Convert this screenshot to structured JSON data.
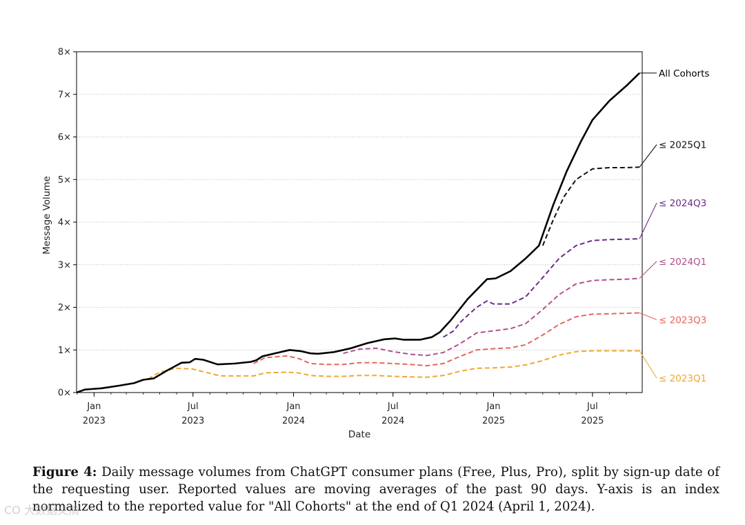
{
  "chart_data": {
    "type": "line",
    "xlabel": "Date",
    "ylabel": "Message Volume",
    "ylim": [
      0,
      8
    ],
    "yticks": [
      {
        "value": 0,
        "label": "0×"
      },
      {
        "value": 1,
        "label": "1×"
      },
      {
        "value": 2,
        "label": "2×"
      },
      {
        "value": 3,
        "label": "3×"
      },
      {
        "value": 4,
        "label": "4×"
      },
      {
        "value": 5,
        "label": "5×"
      },
      {
        "value": 6,
        "label": "6×"
      },
      {
        "value": 7,
        "label": "7×"
      },
      {
        "value": 8,
        "label": "8×"
      }
    ],
    "xlim": [
      "2022-11-30",
      "2025-09-30"
    ],
    "xticks": [
      {
        "date": "2023-01-01",
        "month": "Jan",
        "year": "2023"
      },
      {
        "date": "2023-07-01",
        "month": "Jul",
        "year": "2023"
      },
      {
        "date": "2024-01-01",
        "month": "Jan",
        "year": "2024"
      },
      {
        "date": "2024-07-01",
        "month": "Jul",
        "year": "2024"
      },
      {
        "date": "2025-01-01",
        "month": "Jan",
        "year": "2025"
      },
      {
        "date": "2025-07-01",
        "month": "Jul",
        "year": "2025"
      }
    ],
    "grid": "horizontal",
    "series": [
      {
        "name": "≤ 2023Q1",
        "color": "#f0a72f",
        "style": "dashed",
        "points": [
          [
            "2023-04-10",
            0.32
          ],
          [
            "2023-05-01",
            0.48
          ],
          [
            "2023-06-01",
            0.57
          ],
          [
            "2023-07-01",
            0.55
          ],
          [
            "2023-08-01",
            0.45
          ],
          [
            "2023-08-20",
            0.39
          ],
          [
            "2023-09-20",
            0.39
          ],
          [
            "2023-10-20",
            0.39
          ],
          [
            "2023-11-10",
            0.46
          ],
          [
            "2023-12-20",
            0.48
          ],
          [
            "2024-01-10",
            0.46
          ],
          [
            "2024-02-01",
            0.4
          ],
          [
            "2024-03-01",
            0.38
          ],
          [
            "2024-04-01",
            0.38
          ],
          [
            "2024-05-01",
            0.4
          ],
          [
            "2024-06-01",
            0.4
          ],
          [
            "2024-07-01",
            0.38
          ],
          [
            "2024-08-01",
            0.37
          ],
          [
            "2024-09-01",
            0.36
          ],
          [
            "2024-10-01",
            0.4
          ],
          [
            "2024-11-01",
            0.5
          ],
          [
            "2024-12-01",
            0.57
          ],
          [
            "2025-01-01",
            0.58
          ],
          [
            "2025-02-01",
            0.6
          ],
          [
            "2025-03-01",
            0.65
          ],
          [
            "2025-04-01",
            0.75
          ],
          [
            "2025-05-01",
            0.88
          ],
          [
            "2025-06-01",
            0.96
          ],
          [
            "2025-07-01",
            0.98
          ],
          [
            "2025-08-01",
            0.98
          ],
          [
            "2025-09-01",
            0.98
          ],
          [
            "2025-09-25",
            0.98
          ]
        ]
      },
      {
        "name": "≤ 2023Q3",
        "color": "#e4665a",
        "style": "dashed",
        "points": [
          [
            "2023-10-20",
            0.68
          ],
          [
            "2023-11-10",
            0.82
          ],
          [
            "2023-12-20",
            0.86
          ],
          [
            "2024-01-10",
            0.8
          ],
          [
            "2024-02-01",
            0.68
          ],
          [
            "2024-03-01",
            0.66
          ],
          [
            "2024-04-01",
            0.66
          ],
          [
            "2024-05-01",
            0.7
          ],
          [
            "2024-06-01",
            0.7
          ],
          [
            "2024-07-01",
            0.68
          ],
          [
            "2024-08-01",
            0.66
          ],
          [
            "2024-09-01",
            0.63
          ],
          [
            "2024-10-01",
            0.68
          ],
          [
            "2024-11-01",
            0.85
          ],
          [
            "2024-12-01",
            1.0
          ],
          [
            "2025-01-01",
            1.03
          ],
          [
            "2025-02-01",
            1.05
          ],
          [
            "2025-03-01",
            1.12
          ],
          [
            "2025-04-01",
            1.35
          ],
          [
            "2025-05-01",
            1.6
          ],
          [
            "2025-06-01",
            1.78
          ],
          [
            "2025-07-01",
            1.84
          ],
          [
            "2025-08-01",
            1.85
          ],
          [
            "2025-09-01",
            1.86
          ],
          [
            "2025-09-25",
            1.87
          ]
        ]
      },
      {
        "name": "≤ 2024Q1",
        "color": "#b24f8f",
        "style": "dashed",
        "points": [
          [
            "2024-04-01",
            0.92
          ],
          [
            "2024-05-01",
            1.02
          ],
          [
            "2024-06-01",
            1.04
          ],
          [
            "2024-07-01",
            0.96
          ],
          [
            "2024-08-01",
            0.9
          ],
          [
            "2024-09-01",
            0.87
          ],
          [
            "2024-10-01",
            0.94
          ],
          [
            "2024-11-01",
            1.15
          ],
          [
            "2024-12-01",
            1.4
          ],
          [
            "2025-01-01",
            1.45
          ],
          [
            "2025-02-01",
            1.5
          ],
          [
            "2025-03-01",
            1.62
          ],
          [
            "2025-04-01",
            1.95
          ],
          [
            "2025-05-01",
            2.3
          ],
          [
            "2025-06-01",
            2.55
          ],
          [
            "2025-07-01",
            2.63
          ],
          [
            "2025-08-01",
            2.65
          ],
          [
            "2025-09-01",
            2.66
          ],
          [
            "2025-09-25",
            2.68
          ]
        ]
      },
      {
        "name": "≤ 2024Q3",
        "color": "#6d2b87",
        "style": "dashed",
        "points": [
          [
            "2024-10-01",
            1.3
          ],
          [
            "2024-10-20",
            1.45
          ],
          [
            "2024-11-01",
            1.65
          ],
          [
            "2024-12-01",
            2.0
          ],
          [
            "2024-12-20",
            2.15
          ],
          [
            "2025-01-01",
            2.08
          ],
          [
            "2025-02-01",
            2.08
          ],
          [
            "2025-03-01",
            2.25
          ],
          [
            "2025-04-01",
            2.7
          ],
          [
            "2025-05-01",
            3.15
          ],
          [
            "2025-06-01",
            3.45
          ],
          [
            "2025-07-01",
            3.57
          ],
          [
            "2025-08-01",
            3.59
          ],
          [
            "2025-09-01",
            3.6
          ],
          [
            "2025-09-25",
            3.61
          ]
        ]
      },
      {
        "name": "≤ 2025Q1",
        "color": "#111111",
        "style": "dashed",
        "points": [
          [
            "2025-04-01",
            3.45
          ],
          [
            "2025-04-20",
            4.05
          ],
          [
            "2025-05-10",
            4.6
          ],
          [
            "2025-06-01",
            5.0
          ],
          [
            "2025-07-01",
            5.25
          ],
          [
            "2025-08-01",
            5.28
          ],
          [
            "2025-09-01",
            5.28
          ],
          [
            "2025-09-25",
            5.29
          ]
        ]
      },
      {
        "name": "All Cohorts",
        "color": "#000000",
        "style": "solid",
        "points": [
          [
            "2022-11-30",
            0.0
          ],
          [
            "2022-12-15",
            0.07
          ],
          [
            "2023-01-15",
            0.1
          ],
          [
            "2023-02-15",
            0.16
          ],
          [
            "2023-03-15",
            0.22
          ],
          [
            "2023-04-01",
            0.3
          ],
          [
            "2023-04-20",
            0.33
          ],
          [
            "2023-05-15",
            0.52
          ],
          [
            "2023-06-10",
            0.7
          ],
          [
            "2023-06-25",
            0.71
          ],
          [
            "2023-07-05",
            0.79
          ],
          [
            "2023-07-20",
            0.77
          ],
          [
            "2023-08-15",
            0.66
          ],
          [
            "2023-09-15",
            0.68
          ],
          [
            "2023-10-15",
            0.72
          ],
          [
            "2023-10-25",
            0.76
          ],
          [
            "2023-11-05",
            0.85
          ],
          [
            "2023-12-01",
            0.93
          ],
          [
            "2023-12-25",
            1.0
          ],
          [
            "2024-01-15",
            0.97
          ],
          [
            "2024-02-01",
            0.92
          ],
          [
            "2024-02-15",
            0.91
          ],
          [
            "2024-03-15",
            0.95
          ],
          [
            "2024-04-15",
            1.04
          ],
          [
            "2024-05-15",
            1.16
          ],
          [
            "2024-06-15",
            1.25
          ],
          [
            "2024-07-05",
            1.27
          ],
          [
            "2024-07-20",
            1.24
          ],
          [
            "2024-08-20",
            1.24
          ],
          [
            "2024-09-10",
            1.3
          ],
          [
            "2024-09-25",
            1.42
          ],
          [
            "2024-10-15",
            1.7
          ],
          [
            "2024-11-15",
            2.2
          ],
          [
            "2024-12-20",
            2.66
          ],
          [
            "2025-01-05",
            2.68
          ],
          [
            "2025-02-01",
            2.85
          ],
          [
            "2025-03-01",
            3.15
          ],
          [
            "2025-03-25",
            3.45
          ],
          [
            "2025-04-20",
            4.4
          ],
          [
            "2025-05-15",
            5.2
          ],
          [
            "2025-06-10",
            5.9
          ],
          [
            "2025-07-01",
            6.4
          ],
          [
            "2025-08-01",
            6.85
          ],
          [
            "2025-09-01",
            7.2
          ],
          [
            "2025-09-25",
            7.5
          ]
        ]
      }
    ],
    "end_labels": [
      {
        "series": "All Cohorts",
        "text": "All Cohorts",
        "y": 7.5
      },
      {
        "series": "≤ 2025Q1",
        "text": "≤ 2025Q1",
        "y": 5.82
      },
      {
        "series": "≤ 2024Q3",
        "text": "≤ 2024Q3",
        "y": 4.45
      },
      {
        "series": "≤ 2024Q1",
        "text": "≤ 2024Q1",
        "y": 3.08
      },
      {
        "series": "≤ 2023Q3",
        "text": "≤ 2023Q3",
        "y": 1.71
      },
      {
        "series": "≤ 2023Q1",
        "text": "≤ 2023Q1",
        "y": 0.34
      }
    ]
  },
  "caption": {
    "label": "Figure 4:",
    "text": " Daily message volumes from ChatGPT consumer plans (Free, Plus, Pro), split by sign-up date of the requesting user. Reported values are moving averages of the past 90 days. Y-axis is an index normalized to the reported value for \"All Cohorts\" at the end of Q1 2024 (April 1, 2024)."
  },
  "watermark": "CO 大数据文摘"
}
